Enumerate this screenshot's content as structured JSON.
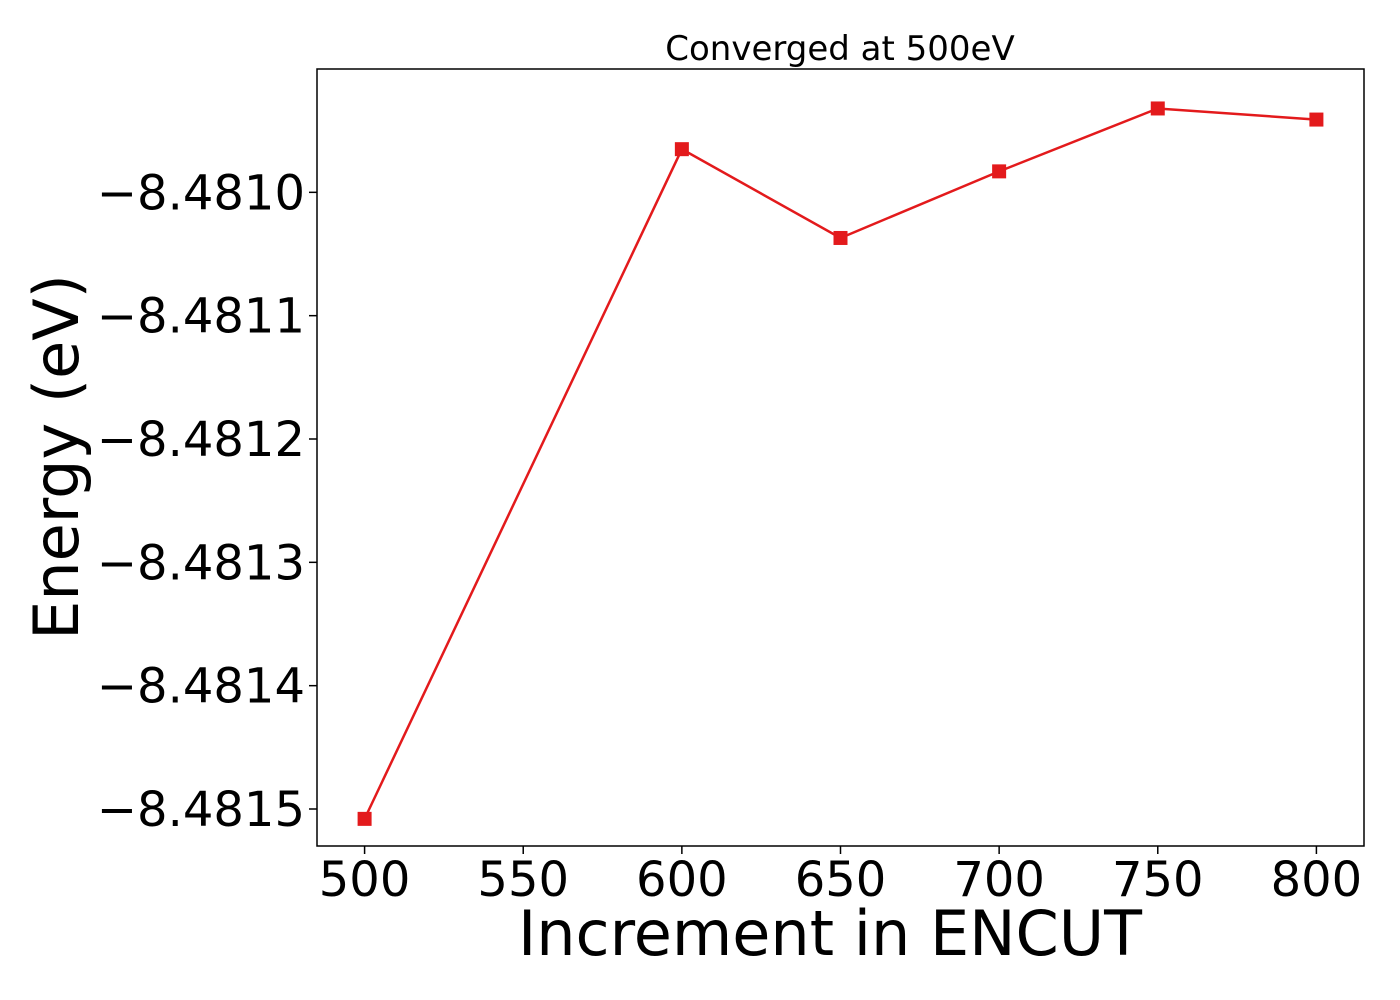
{
  "chart_data": {
    "type": "line",
    "title": "Converged at 500eV",
    "xlabel": "Increment in ENCUT",
    "ylabel": "Energy (eV)",
    "xlim": [
      485,
      815
    ],
    "ylim": [
      -8.48153,
      -8.4809
    ],
    "x_ticks": [
      500,
      550,
      600,
      650,
      700,
      750,
      800
    ],
    "x_tick_labels": [
      "500",
      "550",
      "600",
      "650",
      "700",
      "750",
      "800"
    ],
    "y_ticks": [
      -8.481,
      -8.4811,
      -8.4812,
      -8.4813,
      -8.4814,
      -8.4815
    ],
    "y_tick_labels": [
      "−8.4810",
      "−8.4811",
      "−8.4812",
      "−8.4813",
      "−8.4814",
      "−8.4815"
    ],
    "grid": false,
    "series": [
      {
        "color": "#e31a1c",
        "marker": "square",
        "x": [
          500,
          600,
          650,
          700,
          750,
          800
        ],
        "y": [
          -8.481508,
          -8.480965,
          -8.481037,
          -8.480983,
          -8.480932,
          -8.480941
        ]
      }
    ]
  }
}
